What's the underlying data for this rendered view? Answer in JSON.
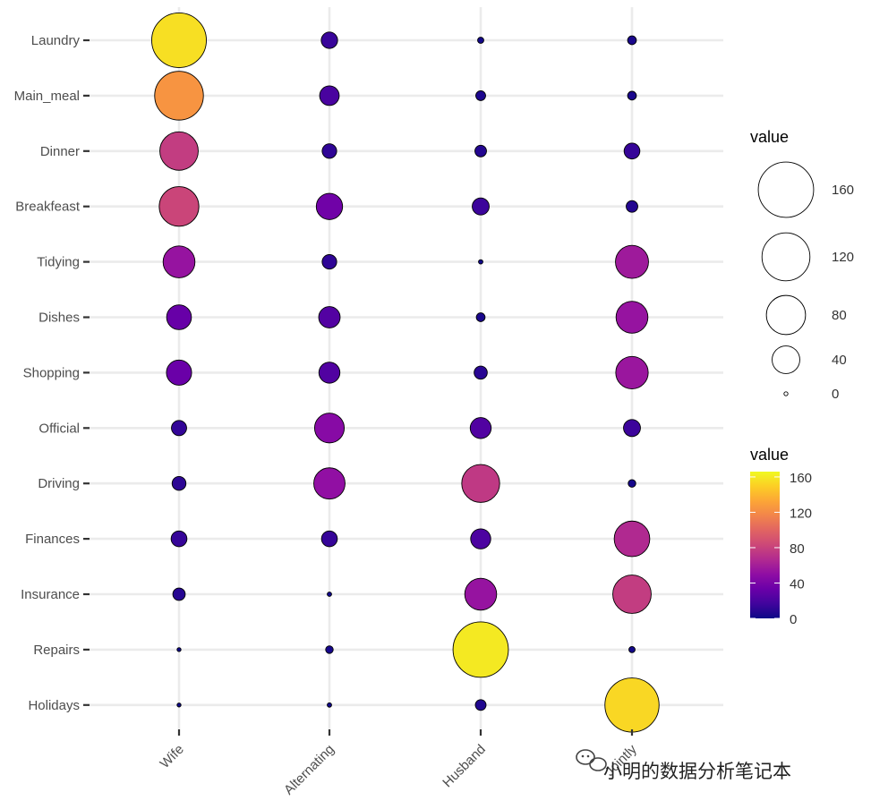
{
  "chart_data": {
    "type": "scatter",
    "x_categories": [
      "Wife",
      "Alternating",
      "Husband",
      "Jointly"
    ],
    "y_categories": [
      "Laundry",
      "Main_meal",
      "Dinner",
      "Breakfeast",
      "Tidying",
      "Dishes",
      "Shopping",
      "Official",
      "Driving",
      "Finances",
      "Insurance",
      "Repairs",
      "Holidays"
    ],
    "values": [
      [
        156,
        14,
        2,
        4
      ],
      [
        124,
        20,
        5,
        4
      ],
      [
        77,
        11,
        7,
        13
      ],
      [
        82,
        36,
        15,
        7
      ],
      [
        53,
        11,
        1,
        57
      ],
      [
        32,
        24,
        4,
        53
      ],
      [
        33,
        23,
        9,
        55
      ],
      [
        12,
        46,
        23,
        15
      ],
      [
        10,
        51,
        75,
        3
      ],
      [
        13,
        13,
        21,
        66
      ],
      [
        8,
        1,
        53,
        77
      ],
      [
        0,
        3,
        160,
        2
      ],
      [
        0,
        1,
        6,
        153
      ]
    ],
    "size_legend": {
      "title": "value",
      "breaks": [
        160,
        120,
        80,
        40,
        0
      ],
      "labels": [
        "160",
        "120",
        "80",
        "40",
        "0"
      ]
    },
    "color_legend": {
      "title": "value",
      "breaks": [
        160,
        120,
        80,
        40,
        0
      ],
      "labels": [
        "160",
        "120",
        "80",
        "40",
        "0"
      ],
      "palette": [
        "#0D0887",
        "#41049D",
        "#6A00A8",
        "#8F0DA4",
        "#B12A90",
        "#CC4778",
        "#E16462",
        "#F2844B",
        "#FCA636",
        "#FCCE25",
        "#F0F921"
      ]
    },
    "grid": true,
    "value_range": [
      0,
      166
    ]
  },
  "watermark": "小明的数据分析笔记本"
}
